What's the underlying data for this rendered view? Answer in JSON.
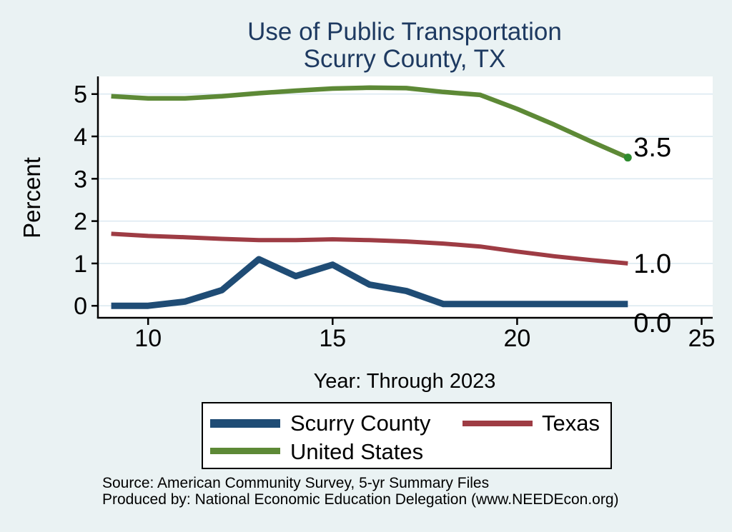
{
  "title": {
    "line1": "Use of Public Transportation",
    "line2": "Scurry County, TX"
  },
  "axes": {
    "y_label": "Percent",
    "x_label": "Year: Through 2023"
  },
  "footer": {
    "source_line1": "Source: American Community Survey, 5-yr Summary Files",
    "source_line2": "Produced by: National Economic Education Delegation (www.NEEDEcon.org)"
  },
  "colors": {
    "background": "#eaf2f3",
    "plot_background": "#ffffff",
    "gridline": "#dce9f1",
    "axis": "#000000",
    "title_text": "#1e3a61",
    "label_text": "#000000",
    "scurry_county": "#1f4c75",
    "texas": "#9e3c44",
    "united_states": "#5d8936",
    "end_marker": "#2e8b2e"
  },
  "chart_data": {
    "type": "line",
    "title": "Use of Public Transportation",
    "subtitle": "Scurry County, TX",
    "xlabel": "Year: Through 2023",
    "ylabel": "Percent",
    "grid": "horizontal",
    "x": [
      9,
      10,
      11,
      12,
      13,
      14,
      15,
      16,
      17,
      18,
      19,
      20,
      21,
      22,
      23
    ],
    "x_ticks": [
      10,
      15,
      20,
      25
    ],
    "y_ticks": [
      0,
      1,
      2,
      3,
      4,
      5
    ],
    "x_range": [
      8.64,
      25.3
    ],
    "y_range": [
      -0.283,
      5.417
    ],
    "series": [
      {
        "name": "Scurry County",
        "color": "#1f4c75",
        "line_width": 9,
        "end_marker": false,
        "values": [
          0.0,
          0.0,
          0.1,
          0.37,
          1.1,
          0.7,
          0.97,
          0.5,
          0.35,
          0.04,
          0.04,
          0.04,
          0.04,
          0.04,
          0.04
        ]
      },
      {
        "name": "Texas",
        "color": "#9e3c44",
        "line_width": 6,
        "end_marker": false,
        "values": [
          1.7,
          1.65,
          1.62,
          1.58,
          1.55,
          1.55,
          1.57,
          1.55,
          1.52,
          1.47,
          1.4,
          1.28,
          1.17,
          1.08,
          1.0
        ]
      },
      {
        "name": "United States",
        "color": "#5d8936",
        "line_width": 6.5,
        "end_marker": true,
        "values": [
          4.95,
          4.9,
          4.9,
          4.95,
          5.02,
          5.08,
          5.13,
          5.15,
          5.14,
          5.05,
          4.98,
          4.65,
          4.28,
          3.88,
          3.5
        ]
      }
    ],
    "end_labels": [
      {
        "text": "3.5",
        "series": "United States",
        "y_anchor": 3.75
      },
      {
        "text": "1.0",
        "series": "Texas",
        "y_anchor": 1.0
      },
      {
        "text": "0.0",
        "series": "Scurry County",
        "y_anchor": -0.4
      }
    ],
    "legend": {
      "position": "bottom",
      "items": [
        "Scurry County",
        "Texas",
        "United States"
      ]
    }
  }
}
